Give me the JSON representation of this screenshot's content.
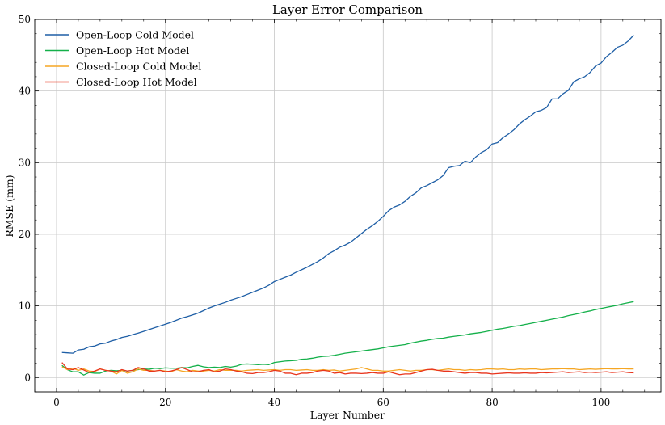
{
  "chart_data": {
    "type": "line",
    "title": "Layer Error Comparison",
    "xlabel": "Layer Number",
    "ylabel": "RMSE (mm)",
    "xlim": [
      -4,
      111
    ],
    "ylim": [
      -2,
      50
    ],
    "xticks": [
      0,
      20,
      40,
      60,
      80,
      100
    ],
    "yticks": [
      0,
      10,
      20,
      30,
      40,
      50
    ],
    "grid": true,
    "legend_position": "top-left",
    "x": [
      1,
      2,
      3,
      4,
      5,
      6,
      7,
      8,
      9,
      10,
      11,
      12,
      13,
      14,
      15,
      16,
      17,
      18,
      19,
      20,
      21,
      22,
      23,
      24,
      25,
      26,
      27,
      28,
      29,
      30,
      31,
      32,
      33,
      34,
      35,
      36,
      37,
      38,
      39,
      40,
      41,
      42,
      43,
      44,
      45,
      46,
      47,
      48,
      49,
      50,
      51,
      52,
      53,
      54,
      55,
      56,
      57,
      58,
      59,
      60,
      61,
      62,
      63,
      64,
      65,
      66,
      67,
      68,
      69,
      70,
      71,
      72,
      73,
      74,
      75,
      76,
      77,
      78,
      79,
      80,
      81,
      82,
      83,
      84,
      85,
      86,
      87,
      88,
      89,
      90,
      91,
      92,
      93,
      94,
      95,
      96,
      97,
      98,
      99,
      100,
      101,
      102,
      103,
      104,
      105,
      106
    ],
    "series": [
      {
        "name": "Open-Loop Cold Model",
        "color": "#1f5fa6",
        "values": [
          3.5,
          3.45,
          3.4,
          3.85,
          3.95,
          4.3,
          4.4,
          4.7,
          4.8,
          5.1,
          5.3,
          5.6,
          5.75,
          6.0,
          6.2,
          6.45,
          6.7,
          6.95,
          7.2,
          7.45,
          7.7,
          8.0,
          8.3,
          8.5,
          8.75,
          9.0,
          9.35,
          9.7,
          10.0,
          10.25,
          10.5,
          10.8,
          11.05,
          11.3,
          11.6,
          11.9,
          12.2,
          12.5,
          12.9,
          13.4,
          13.7,
          14.0,
          14.3,
          14.7,
          15.05,
          15.4,
          15.8,
          16.2,
          16.7,
          17.3,
          17.7,
          18.2,
          18.5,
          18.9,
          19.5,
          20.1,
          20.7,
          21.2,
          21.8,
          22.5,
          23.3,
          23.8,
          24.1,
          24.6,
          25.3,
          25.8,
          26.5,
          26.8,
          27.2,
          27.6,
          28.2,
          29.3,
          29.5,
          29.6,
          30.2,
          30.0,
          30.8,
          31.4,
          31.8,
          32.6,
          32.8,
          33.5,
          34.0,
          34.6,
          35.4,
          36.0,
          36.5,
          37.1,
          37.3,
          37.7,
          38.9,
          38.9,
          39.6,
          40.1,
          41.3,
          41.7,
          42.0,
          42.6,
          43.5,
          43.9,
          44.8,
          45.4,
          46.1,
          46.4,
          47.0,
          47.8
        ]
      },
      {
        "name": "Open-Loop Hot Model",
        "color": "#14b04a",
        "values": [
          1.7,
          1.1,
          0.8,
          0.8,
          0.35,
          0.7,
          0.6,
          0.6,
          0.9,
          1.0,
          0.95,
          1.0,
          0.9,
          1.0,
          1.1,
          1.2,
          1.15,
          1.3,
          1.25,
          1.35,
          1.3,
          1.3,
          1.4,
          1.35,
          1.55,
          1.7,
          1.5,
          1.4,
          1.45,
          1.4,
          1.55,
          1.45,
          1.6,
          1.85,
          1.9,
          1.85,
          1.8,
          1.85,
          1.8,
          2.1,
          2.2,
          2.3,
          2.35,
          2.4,
          2.55,
          2.6,
          2.7,
          2.85,
          2.95,
          3.0,
          3.1,
          3.25,
          3.4,
          3.5,
          3.6,
          3.7,
          3.8,
          3.9,
          4.0,
          4.15,
          4.3,
          4.4,
          4.5,
          4.6,
          4.8,
          4.95,
          5.1,
          5.2,
          5.35,
          5.45,
          5.5,
          5.65,
          5.75,
          5.85,
          5.95,
          6.1,
          6.2,
          6.3,
          6.45,
          6.6,
          6.75,
          6.85,
          7.0,
          7.15,
          7.25,
          7.4,
          7.55,
          7.7,
          7.85,
          8.0,
          8.15,
          8.3,
          8.45,
          8.65,
          8.8,
          8.95,
          9.15,
          9.3,
          9.5,
          9.65,
          9.8,
          9.95,
          10.1,
          10.3,
          10.45,
          10.6
        ]
      },
      {
        "name": "Closed-Loop Cold Model",
        "color": "#f5a623",
        "values": [
          1.5,
          1.1,
          1.3,
          1.0,
          1.2,
          0.9,
          0.85,
          1.2,
          1.0,
          0.9,
          0.5,
          1.0,
          0.6,
          0.8,
          1.2,
          1.0,
          1.0,
          0.9,
          1.0,
          0.9,
          0.8,
          1.1,
          0.9,
          0.8,
          1.0,
          0.9,
          0.9,
          1.0,
          0.9,
          1.1,
          1.0,
          1.0,
          1.0,
          0.9,
          1.0,
          1.05,
          1.1,
          1.0,
          1.05,
          1.1,
          1.0,
          1.1,
          1.1,
          1.0,
          1.05,
          1.1,
          1.0,
          1.0,
          1.1,
          1.0,
          1.05,
          0.9,
          1.0,
          1.1,
          1.2,
          1.4,
          1.2,
          1.0,
          1.0,
          0.9,
          0.9,
          1.0,
          1.1,
          1.0,
          0.9,
          1.0,
          1.0,
          1.1,
          1.1,
          1.0,
          1.1,
          1.2,
          1.1,
          1.1,
          1.0,
          1.1,
          1.05,
          1.1,
          1.2,
          1.2,
          1.15,
          1.2,
          1.1,
          1.1,
          1.2,
          1.15,
          1.2,
          1.2,
          1.1,
          1.15,
          1.2,
          1.2,
          1.25,
          1.2,
          1.2,
          1.1,
          1.15,
          1.2,
          1.15,
          1.2,
          1.25,
          1.2,
          1.2,
          1.25,
          1.2,
          1.2
        ]
      },
      {
        "name": "Closed-Loop Hot Model",
        "color": "#e8341c",
        "values": [
          2.1,
          1.2,
          1.1,
          1.4,
          1.05,
          0.7,
          0.9,
          1.2,
          1.0,
          0.9,
          0.8,
          1.1,
          0.9,
          1.0,
          1.4,
          1.2,
          0.9,
          0.9,
          1.0,
          0.8,
          0.9,
          1.1,
          1.4,
          1.1,
          0.8,
          0.8,
          1.0,
          1.1,
          0.8,
          0.9,
          1.2,
          1.1,
          0.9,
          0.8,
          0.6,
          0.55,
          0.7,
          0.7,
          0.8,
          1.0,
          0.9,
          0.6,
          0.6,
          0.4,
          0.6,
          0.6,
          0.7,
          0.9,
          1.0,
          0.9,
          0.6,
          0.7,
          0.5,
          0.6,
          0.6,
          0.55,
          0.6,
          0.7,
          0.6,
          0.6,
          0.8,
          0.6,
          0.4,
          0.5,
          0.5,
          0.7,
          0.9,
          1.1,
          1.15,
          1.0,
          0.9,
          0.9,
          0.8,
          0.7,
          0.6,
          0.7,
          0.7,
          0.6,
          0.6,
          0.5,
          0.55,
          0.6,
          0.65,
          0.6,
          0.6,
          0.65,
          0.6,
          0.6,
          0.7,
          0.65,
          0.7,
          0.75,
          0.8,
          0.7,
          0.75,
          0.8,
          0.7,
          0.75,
          0.7,
          0.75,
          0.8,
          0.7,
          0.75,
          0.8,
          0.7,
          0.65
        ]
      }
    ]
  }
}
